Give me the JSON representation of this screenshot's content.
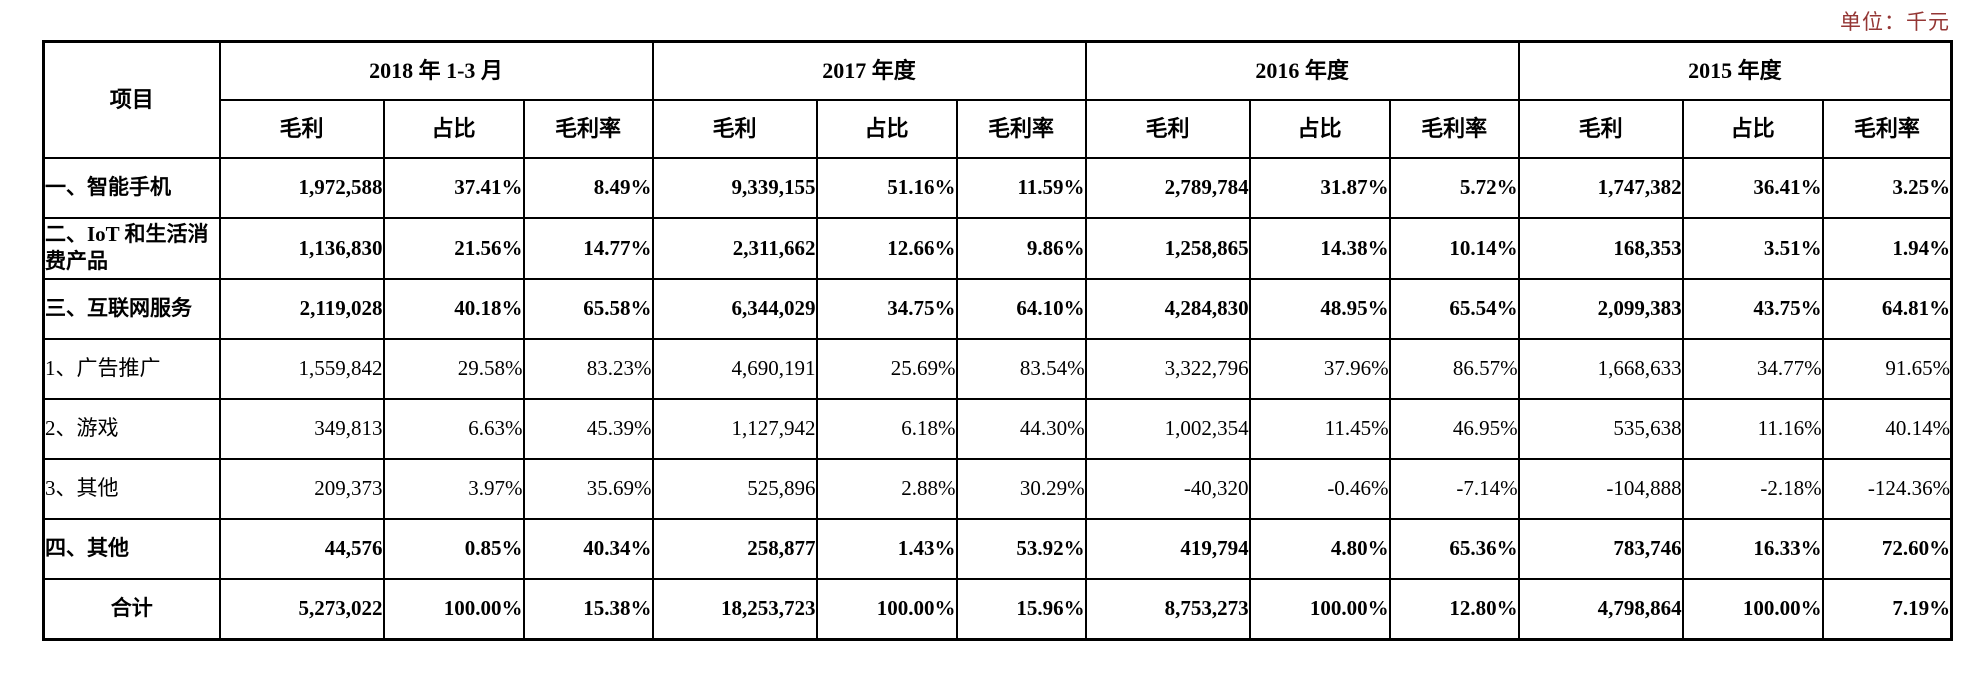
{
  "unit_label": "单位：千元",
  "unit_color": "#943634",
  "table": {
    "item_header": "项目",
    "period_groups": [
      {
        "label": "2018 年 1-3 月",
        "sub": [
          "毛利",
          "占比",
          "毛利率"
        ]
      },
      {
        "label": "2017 年度",
        "sub": [
          "毛利",
          "占比",
          "毛利率"
        ]
      },
      {
        "label": "2016 年度",
        "sub": [
          "毛利",
          "占比",
          "毛利率"
        ]
      },
      {
        "label": "2015 年度",
        "sub": [
          "毛利",
          "占比",
          "毛利率"
        ]
      }
    ],
    "rows": [
      {
        "label": "一、智能手机",
        "bold": true,
        "total": false,
        "values": [
          "1,972,588",
          "37.41%",
          "8.49%",
          "9,339,155",
          "51.16%",
          "11.59%",
          "2,789,784",
          "31.87%",
          "5.72%",
          "1,747,382",
          "36.41%",
          "3.25%"
        ]
      },
      {
        "label": "二、IoT 和生活消费产品",
        "bold": true,
        "total": false,
        "values": [
          "1,136,830",
          "21.56%",
          "14.77%",
          "2,311,662",
          "12.66%",
          "9.86%",
          "1,258,865",
          "14.38%",
          "10.14%",
          "168,353",
          "3.51%",
          "1.94%"
        ]
      },
      {
        "label": "三、互联网服务",
        "bold": true,
        "total": false,
        "values": [
          "2,119,028",
          "40.18%",
          "65.58%",
          "6,344,029",
          "34.75%",
          "64.10%",
          "4,284,830",
          "48.95%",
          "65.54%",
          "2,099,383",
          "43.75%",
          "64.81%"
        ]
      },
      {
        "label": "1、广告推广",
        "bold": false,
        "total": false,
        "values": [
          "1,559,842",
          "29.58%",
          "83.23%",
          "4,690,191",
          "25.69%",
          "83.54%",
          "3,322,796",
          "37.96%",
          "86.57%",
          "1,668,633",
          "34.77%",
          "91.65%"
        ]
      },
      {
        "label": "2、游戏",
        "bold": false,
        "total": false,
        "values": [
          "349,813",
          "6.63%",
          "45.39%",
          "1,127,942",
          "6.18%",
          "44.30%",
          "1,002,354",
          "11.45%",
          "46.95%",
          "535,638",
          "11.16%",
          "40.14%"
        ]
      },
      {
        "label": "3、其他",
        "bold": false,
        "total": false,
        "values": [
          "209,373",
          "3.97%",
          "35.69%",
          "525,896",
          "2.88%",
          "30.29%",
          "-40,320",
          "-0.46%",
          "-7.14%",
          "-104,888",
          "-2.18%",
          "-124.36%"
        ]
      },
      {
        "label": "四、其他",
        "bold": true,
        "total": false,
        "values": [
          "44,576",
          "0.85%",
          "40.34%",
          "258,877",
          "1.43%",
          "53.92%",
          "419,794",
          "4.80%",
          "65.36%",
          "783,746",
          "16.33%",
          "72.60%"
        ]
      },
      {
        "label": "合计",
        "bold": true,
        "total": true,
        "values": [
          "5,273,022",
          "100.00%",
          "15.38%",
          "18,253,723",
          "100.00%",
          "15.96%",
          "8,753,273",
          "100.00%",
          "12.80%",
          "4,798,864",
          "100.00%",
          "7.19%"
        ]
      }
    ]
  }
}
